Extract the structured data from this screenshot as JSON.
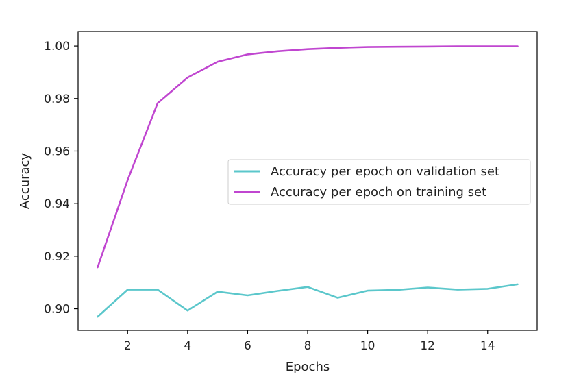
{
  "chart_data": {
    "type": "line",
    "title": "",
    "xlabel": "Epochs",
    "ylabel": "Accuracy",
    "xlim": [
      0.35,
      15.65
    ],
    "ylim": [
      0.8918,
      1.0055
    ],
    "xticks": [
      2,
      4,
      6,
      8,
      10,
      12,
      14
    ],
    "yticks": [
      0.9,
      0.92,
      0.94,
      0.96,
      0.98,
      1.0
    ],
    "grid": false,
    "legend_position": "center-right",
    "x": [
      1,
      2,
      3,
      4,
      5,
      6,
      7,
      8,
      9,
      10,
      11,
      12,
      13,
      14,
      15
    ],
    "series": [
      {
        "name": "Accuracy per epoch on validation set",
        "color": "#5bc7cb",
        "values": [
          0.897,
          0.9073,
          0.9073,
          0.8993,
          0.9065,
          0.9051,
          0.9068,
          0.9083,
          0.9042,
          0.9069,
          0.9072,
          0.9081,
          0.9073,
          0.9076,
          0.9093
        ]
      },
      {
        "name": "Accuracy per epoch on training set",
        "color": "#c046d0",
        "values": [
          0.9158,
          0.949,
          0.9782,
          0.988,
          0.994,
          0.9968,
          0.998,
          0.9988,
          0.9993,
          0.9996,
          0.9997,
          0.9998,
          0.9999,
          0.9999,
          0.9999
        ]
      }
    ]
  }
}
